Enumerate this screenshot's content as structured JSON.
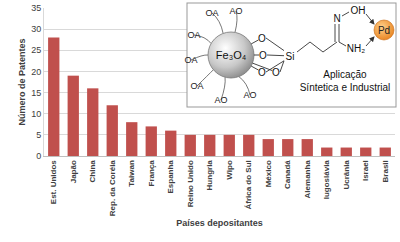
{
  "chart_data": {
    "type": "bar",
    "x_label": "Países depositantes",
    "y_label": "Número de Patentes",
    "categories": [
      "Est. Unidos",
      "Japão",
      "China",
      "Rep. da Coréia",
      "Taiwan",
      "França",
      "Espanha",
      "Reino Unido",
      "Hungria",
      "Wipo",
      "África do Sul",
      "México",
      "Canadá",
      "Alemanha",
      "Iugoslávia",
      "Ucrânia",
      "Israel",
      "Brasil"
    ],
    "values": [
      28,
      19,
      16,
      12,
      8,
      7,
      6,
      5,
      5,
      5,
      5,
      4,
      4,
      4,
      2,
      2,
      2,
      2
    ],
    "color": "#c0504d",
    "ylim": [
      0,
      35
    ],
    "yticks": [
      0,
      5,
      10,
      15,
      20,
      25,
      30,
      35
    ],
    "grid": true
  },
  "inset": {
    "particle": "Fe₃O₄",
    "ligands": [
      "OA",
      "OA",
      "OA",
      "OA",
      "AO",
      "AO",
      "AO"
    ],
    "oxygens": [
      "O",
      "O",
      "O",
      "O"
    ],
    "silicon": "Si",
    "nitrogen": "N",
    "hydroxyl": "OH",
    "amine": "NH₂",
    "metal": "Pd",
    "caption": [
      "Aplicação",
      "Síntetica e Industrial"
    ]
  }
}
